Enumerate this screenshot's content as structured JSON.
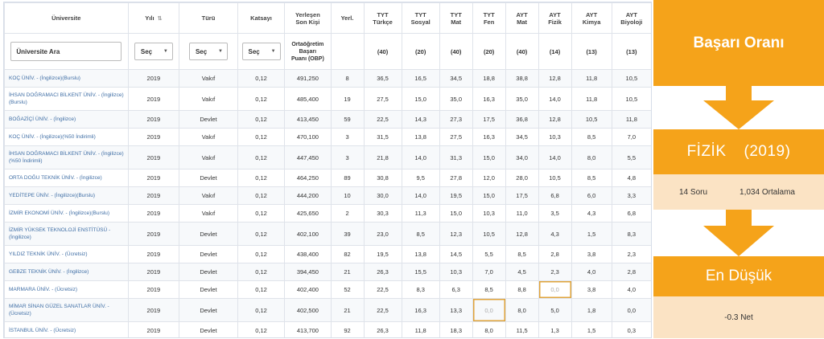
{
  "headers": {
    "universite": "Üniversite",
    "yili": "Yılı",
    "turu": "Türü",
    "katsayi": "Katsayı",
    "yerlesen_1": "Yerleşen",
    "yerlesen_2": "Son Kişi",
    "yerl": "Yerl.",
    "tyt_turkce_1": "TYT",
    "tyt_turkce_2": "Türkçe",
    "tyt_sosyal_1": "TYT",
    "tyt_sosyal_2": "Sosyal",
    "tyt_mat_1": "TYT",
    "tyt_mat_2": "Mat",
    "tyt_fen_1": "TYT",
    "tyt_fen_2": "Fen",
    "ayt_mat_1": "AYT",
    "ayt_mat_2": "Mat",
    "ayt_fizik_1": "AYT",
    "ayt_fizik_2": "Fizik",
    "ayt_kimya_1": "AYT",
    "ayt_kimya_2": "Kimya",
    "ayt_biyoloji_1": "AYT",
    "ayt_biyoloji_2": "Biyoloji"
  },
  "filters": {
    "search_value": "Üniversite Ara",
    "sec": "Seç",
    "obp_1": "Ortaöğretim",
    "obp_2": "Başarı",
    "obp_3": "Puanı (OBP)",
    "q": [
      "(40)",
      "(20)",
      "(40)",
      "(20)",
      "(40)",
      "(14)",
      "(13)",
      "(13)"
    ]
  },
  "rows": [
    {
      "uni": "KOÇ ÜNİV. - (İngilizce)(Burslu)",
      "yil": "2019",
      "tur": "Vakıf",
      "kat": "0,12",
      "son": "491,250",
      "yerl": "8",
      "v": [
        "36,5",
        "16,5",
        "34,5",
        "18,8",
        "38,8",
        "12,8",
        "11,8",
        "10,5"
      ]
    },
    {
      "uni": "İHSAN DOĞRAMACI BİLKENT ÜNİV. - (İngilizce)(Burslu)",
      "yil": "2019",
      "tur": "Vakıf",
      "kat": "0,12",
      "son": "485,400",
      "yerl": "19",
      "v": [
        "27,5",
        "15,0",
        "35,0",
        "16,3",
        "35,0",
        "14,0",
        "11,8",
        "10,5"
      ]
    },
    {
      "uni": "BOĞAZİÇİ ÜNİV. - (İngilizce)",
      "yil": "2019",
      "tur": "Devlet",
      "kat": "0,12",
      "son": "413,450",
      "yerl": "59",
      "v": [
        "22,5",
        "14,3",
        "27,3",
        "17,5",
        "36,8",
        "12,8",
        "10,5",
        "11,8"
      ]
    },
    {
      "uni": "KOÇ ÜNİV. - (İngilizce)(%50 İndirimli)",
      "yil": "2019",
      "tur": "Vakıf",
      "kat": "0,12",
      "son": "470,100",
      "yerl": "3",
      "v": [
        "31,5",
        "13,8",
        "27,5",
        "16,3",
        "34,5",
        "10,3",
        "8,5",
        "7,0"
      ]
    },
    {
      "uni": "İHSAN DOĞRAMACI BİLKENT ÜNİV. - (İngilizce)(%50 İndirimli)",
      "yil": "2019",
      "tur": "Vakıf",
      "kat": "0,12",
      "son": "447,450",
      "yerl": "3",
      "v": [
        "21,8",
        "14,0",
        "31,3",
        "15,0",
        "34,0",
        "14,0",
        "8,0",
        "5,5"
      ]
    },
    {
      "uni": "ORTA DOĞU TEKNİK ÜNİV. - (İngilizce)",
      "yil": "2019",
      "tur": "Devlet",
      "kat": "0,12",
      "son": "464,250",
      "yerl": "89",
      "v": [
        "30,8",
        "9,5",
        "27,8",
        "12,0",
        "28,0",
        "10,5",
        "8,5",
        "4,8"
      ]
    },
    {
      "uni": "YEDİTEPE ÜNİV. - (İngilizce)(Burslu)",
      "yil": "2019",
      "tur": "Vakıf",
      "kat": "0,12",
      "son": "444,200",
      "yerl": "10",
      "v": [
        "30,0",
        "14,0",
        "19,5",
        "15,0",
        "17,5",
        "6,8",
        "6,0",
        "3,3"
      ]
    },
    {
      "uni": "İZMİR EKONOMİ ÜNİV. - (İngilizce)(Burslu)",
      "yil": "2019",
      "tur": "Vakıf",
      "kat": "0,12",
      "son": "425,650",
      "yerl": "2",
      "v": [
        "30,3",
        "11,3",
        "15,0",
        "10,3",
        "11,0",
        "3,5",
        "4,3",
        "6,8"
      ]
    },
    {
      "uni": "İZMİR YÜKSEK TEKNOLOJİ ENSTİTÜSÜ - (İngilizce)",
      "yil": "2019",
      "tur": "Devlet",
      "kat": "0,12",
      "son": "402,100",
      "yerl": "39",
      "v": [
        "23,0",
        "8,5",
        "12,3",
        "10,5",
        "12,8",
        "4,3",
        "1,5",
        "8,3"
      ]
    },
    {
      "uni": "YILDIZ TEKNİK ÜNİV. - (Ücretsiz)",
      "yil": "2019",
      "tur": "Devlet",
      "kat": "0,12",
      "son": "438,400",
      "yerl": "82",
      "v": [
        "19,5",
        "13,8",
        "14,5",
        "5,5",
        "8,5",
        "2,8",
        "3,8",
        "2,3"
      ]
    },
    {
      "uni": "GEBZE TEKNİK ÜNİV. - (İngilizce)",
      "yil": "2019",
      "tur": "Devlet",
      "kat": "0,12",
      "son": "394,450",
      "yerl": "21",
      "v": [
        "26,3",
        "15,5",
        "10,3",
        "7,0",
        "4,5",
        "2,3",
        "4,0",
        "2,8"
      ]
    },
    {
      "uni": "MARMARA ÜNİV. - (Ücretsiz)",
      "yil": "2019",
      "tur": "Devlet",
      "kat": "0,12",
      "son": "402,400",
      "yerl": "52",
      "v": [
        "22,5",
        "8,3",
        "6,3",
        "8,5",
        "8,8",
        "0,0",
        "3,8",
        "4,0"
      ]
    },
    {
      "uni": "MİMAR SİNAN GÜZEL SANATLAR ÜNİV. - (Ücretsiz)",
      "yil": "2019",
      "tur": "Devlet",
      "kat": "0,12",
      "son": "402,500",
      "yerl": "21",
      "v": [
        "22,5",
        "16,3",
        "13,3",
        "0,0",
        "8,0",
        "5,0",
        "1,8",
        "0,0"
      ]
    },
    {
      "uni": "İSTANBUL ÜNİV. - (Ücretsiz)",
      "yil": "2019",
      "tur": "Devlet",
      "kat": "0,12",
      "son": "413,700",
      "yerl": "92",
      "v": [
        "26,3",
        "11,8",
        "18,3",
        "8,0",
        "11,5",
        "1,3",
        "1,5",
        "0,3"
      ]
    }
  ],
  "panel": {
    "title": "Başarı Oranı",
    "subject": "FİZİK",
    "year": "(2019)",
    "soru": "14 Soru",
    "ortalama": "1,034  Ortalama",
    "lowest_title": "En Düşük",
    "lowest_value": "-0.3 Net"
  },
  "colors": {
    "accent": "#f5a31a",
    "light": "#fbe3c4",
    "link": "#3f6ea5",
    "highlight": "#e0a43b"
  }
}
